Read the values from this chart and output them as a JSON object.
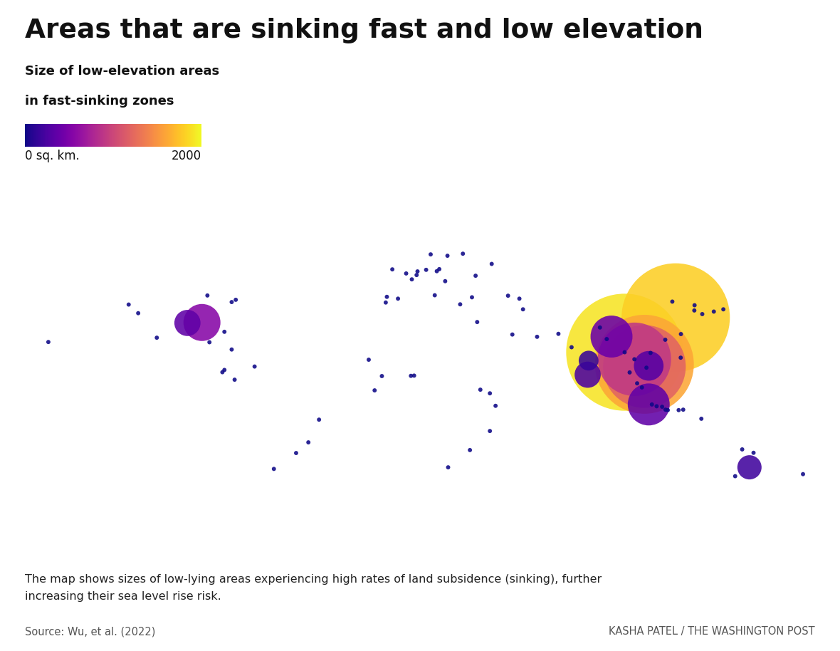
{
  "title": "Areas that are sinking fast and low elevation",
  "legend_title_line1": "Size of low-elevation areas",
  "legend_title_line2": "in fast-sinking zones",
  "legend_min_label": "0 sq. km.",
  "legend_max_label": "2000",
  "caption_line1": "The map shows sizes of low-lying areas experiencing high rates of land subsidence (sinking), further",
  "caption_line2": "increasing their sea level rise risk.",
  "source": "Source: Wu, et al. (2022)",
  "credit": "KASHA PATEL / THE WASHINGTON POST",
  "background_color": "#ffffff",
  "land_color": "#e8e8e8",
  "border_color": "#bbbbbb",
  "ocean_color": "#ffffff",
  "vmin": 0,
  "vmax": 2000,
  "points": [
    {
      "lon": -122.4,
      "lat": 37.8,
      "value": 5,
      "size": 18
    },
    {
      "lon": -118.2,
      "lat": 34.0,
      "value": 5,
      "size": 18
    },
    {
      "lon": -87.7,
      "lat": 41.8,
      "value": 5,
      "size": 18
    },
    {
      "lon": -80.2,
      "lat": 25.8,
      "value": 5,
      "size": 18
    },
    {
      "lon": -75.2,
      "lat": 39.9,
      "value": 5,
      "size": 18
    },
    {
      "lon": -90.1,
      "lat": 29.9,
      "value": 550,
      "size": 1400
    },
    {
      "lon": -96.5,
      "lat": 29.7,
      "value": 350,
      "size": 700
    },
    {
      "lon": -77.0,
      "lat": 38.9,
      "value": 5,
      "size": 18
    },
    {
      "lon": -157.8,
      "lat": 21.3,
      "value": 5,
      "size": 18
    },
    {
      "lon": -110.0,
      "lat": 23.2,
      "value": 5,
      "size": 18
    },
    {
      "lon": -77.0,
      "lat": 18.0,
      "value": 5,
      "size": 18
    },
    {
      "lon": -58.4,
      "lat": -34.6,
      "value": 5,
      "size": 18
    },
    {
      "lon": -43.2,
      "lat": -22.9,
      "value": 5,
      "size": 18
    },
    {
      "lon": -38.5,
      "lat": -12.9,
      "value": 5,
      "size": 18
    },
    {
      "lon": -48.6,
      "lat": -27.6,
      "value": 5,
      "size": 18
    },
    {
      "lon": -81.1,
      "lat": 8.0,
      "value": 5,
      "size": 18
    },
    {
      "lon": -66.9,
      "lat": 10.5,
      "value": 5,
      "size": 18
    },
    {
      "lon": -0.1,
      "lat": 51.5,
      "value": 5,
      "size": 18
    },
    {
      "lon": 4.9,
      "lat": 52.4,
      "value": 5,
      "size": 18
    },
    {
      "lon": 12.5,
      "lat": 41.9,
      "value": 5,
      "size": 18
    },
    {
      "lon": 14.5,
      "lat": 53.4,
      "value": 5,
      "size": 18
    },
    {
      "lon": 2.4,
      "lat": 48.9,
      "value": 5,
      "size": 18
    },
    {
      "lon": 13.4,
      "lat": 52.5,
      "value": 5,
      "size": 18
    },
    {
      "lon": 18.1,
      "lat": 59.3,
      "value": 5,
      "size": 18
    },
    {
      "lon": 24.9,
      "lat": 60.2,
      "value": 5,
      "size": 18
    },
    {
      "lon": 10.7,
      "lat": 59.9,
      "value": 5,
      "size": 18
    },
    {
      "lon": 8.7,
      "lat": 53.1,
      "value": 5,
      "size": 18
    },
    {
      "lon": 4.5,
      "lat": 50.8,
      "value": 5,
      "size": 18
    },
    {
      "lon": 17.1,
      "lat": 48.1,
      "value": 5,
      "size": 18
    },
    {
      "lon": 23.7,
      "lat": 37.9,
      "value": 5,
      "size": 18
    },
    {
      "lon": 28.9,
      "lat": 41.0,
      "value": 5,
      "size": 18
    },
    {
      "lon": 30.5,
      "lat": 50.5,
      "value": 5,
      "size": 18
    },
    {
      "lon": 37.6,
      "lat": 55.7,
      "value": 5,
      "size": 18
    },
    {
      "lon": -9.1,
      "lat": 38.7,
      "value": 5,
      "size": 18
    },
    {
      "lon": -8.6,
      "lat": 41.2,
      "value": 5,
      "size": 18
    },
    {
      "lon": -3.7,
      "lat": 40.4,
      "value": 5,
      "size": 18
    },
    {
      "lon": -6.2,
      "lat": 53.3,
      "value": 5,
      "size": 18
    },
    {
      "lon": 31.2,
      "lat": 30.1,
      "value": 5,
      "size": 18
    },
    {
      "lon": 36.8,
      "lat": -1.3,
      "value": 5,
      "size": 18
    },
    {
      "lon": 32.6,
      "lat": 0.3,
      "value": 5,
      "size": 18
    },
    {
      "lon": 18.4,
      "lat": -33.9,
      "value": 5,
      "size": 18
    },
    {
      "lon": 36.8,
      "lat": -17.9,
      "value": 5,
      "size": 18
    },
    {
      "lon": 2.0,
      "lat": 6.4,
      "value": 5,
      "size": 18
    },
    {
      "lon": 3.4,
      "lat": 6.5,
      "value": 5,
      "size": 18
    },
    {
      "lon": -10.8,
      "lat": 6.3,
      "value": 5,
      "size": 18
    },
    {
      "lon": -16.6,
      "lat": 13.5,
      "value": 5,
      "size": 18
    },
    {
      "lon": -14.0,
      "lat": 0.0,
      "value": 5,
      "size": 18
    },
    {
      "lon": 44.8,
      "lat": 41.7,
      "value": 5,
      "size": 18
    },
    {
      "lon": 49.8,
      "lat": 40.4,
      "value": 5,
      "size": 18
    },
    {
      "lon": 51.4,
      "lat": 35.7,
      "value": 5,
      "size": 18
    },
    {
      "lon": 57.6,
      "lat": 23.6,
      "value": 5,
      "size": 18
    },
    {
      "lon": 46.7,
      "lat": 24.6,
      "value": 5,
      "size": 18
    },
    {
      "lon": 67.0,
      "lat": 24.9,
      "value": 5,
      "size": 18
    },
    {
      "lon": 72.8,
      "lat": 19.0,
      "value": 5,
      "size": 18
    },
    {
      "lon": 85.3,
      "lat": 27.7,
      "value": 5,
      "size": 18
    },
    {
      "lon": 88.3,
      "lat": 22.6,
      "value": 5,
      "size": 18
    },
    {
      "lon": 96.2,
      "lat": 16.8,
      "value": 5,
      "size": 18
    },
    {
      "lon": 100.5,
      "lat": 13.7,
      "value": 5,
      "size": 18
    },
    {
      "lon": 103.8,
      "lat": 1.3,
      "value": 5,
      "size": 18
    },
    {
      "lon": 101.7,
      "lat": 3.1,
      "value": 5,
      "size": 18
    },
    {
      "lon": 107.6,
      "lat": 16.5,
      "value": 5,
      "size": 18
    },
    {
      "lon": 117.2,
      "lat": 39.1,
      "value": 5,
      "size": 18
    },
    {
      "lon": 114.1,
      "lat": 22.3,
      "value": 5,
      "size": 18
    },
    {
      "lon": 120.9,
      "lat": 14.4,
      "value": 5,
      "size": 18
    },
    {
      "lon": 108.2,
      "lat": -6.2,
      "value": 5,
      "size": 18
    },
    {
      "lon": 112.7,
      "lat": -7.2,
      "value": 5,
      "size": 18
    },
    {
      "lon": 110.3,
      "lat": -7.0,
      "value": 5,
      "size": 18
    },
    {
      "lon": 105.8,
      "lat": 10.0,
      "value": 5,
      "size": 18
    },
    {
      "lon": 98.4,
      "lat": 7.9,
      "value": 5,
      "size": 18
    },
    {
      "lon": 127.0,
      "lat": 37.5,
      "value": 5,
      "size": 18
    },
    {
      "lon": 126.9,
      "lat": 35.2,
      "value": 5,
      "size": 18
    },
    {
      "lon": 139.7,
      "lat": 35.7,
      "value": 5,
      "size": 18
    },
    {
      "lon": 130.4,
      "lat": 33.6,
      "value": 5,
      "size": 18
    },
    {
      "lon": 135.5,
      "lat": 34.7,
      "value": 5,
      "size": 18
    },
    {
      "lon": 121.0,
      "lat": 24.8,
      "value": 5,
      "size": 18
    },
    {
      "lon": 114.2,
      "lat": -8.5,
      "value": 5,
      "size": 18
    },
    {
      "lon": 115.2,
      "lat": -8.7,
      "value": 5,
      "size": 18
    },
    {
      "lon": 130.0,
      "lat": -12.5,
      "value": 5,
      "size": 18
    },
    {
      "lon": 148.0,
      "lat": -26.0,
      "value": 5,
      "size": 18
    },
    {
      "lon": 153.0,
      "lat": -27.5,
      "value": 5,
      "size": 18
    },
    {
      "lon": 144.9,
      "lat": -37.8,
      "value": 5,
      "size": 18
    },
    {
      "lon": 174.8,
      "lat": -36.9,
      "value": 5,
      "size": 18
    },
    {
      "lon": 120.0,
      "lat": -8.7,
      "value": 5,
      "size": 18
    },
    {
      "lon": 122.0,
      "lat": -8.5,
      "value": 5,
      "size": 18
    },
    {
      "lon": -86.8,
      "lat": 21.2,
      "value": 5,
      "size": 18
    },
    {
      "lon": -80.2,
      "lat": 9.0,
      "value": 5,
      "size": 18
    },
    {
      "lon": -75.7,
      "lat": 4.7,
      "value": 5,
      "size": 18
    },
    {
      "lon": 39.3,
      "lat": -6.8,
      "value": 5,
      "size": 18
    },
    {
      "lon": 28.0,
      "lat": -26.3,
      "value": 5,
      "size": 18
    },
    {
      "lon": 118.7,
      "lat": 32.1,
      "value": 1800,
      "size": 12000
    },
    {
      "lon": 96.2,
      "lat": 16.8,
      "value": 1900,
      "size": 14000
    },
    {
      "lon": 104.9,
      "lat": 11.5,
      "value": 1600,
      "size": 10000
    },
    {
      "lon": 104.9,
      "lat": 10.5,
      "value": 1200,
      "size": 7000
    },
    {
      "lon": 100.5,
      "lat": 13.7,
      "value": 900,
      "size": 5500
    },
    {
      "lon": 106.8,
      "lat": -6.2,
      "value": 350,
      "size": 1800
    },
    {
      "lon": 106.8,
      "lat": 10.8,
      "value": 300,
      "size": 900
    },
    {
      "lon": 90.4,
      "lat": 23.7,
      "value": 400,
      "size": 1800
    },
    {
      "lon": 80.3,
      "lat": 13.1,
      "value": 150,
      "size": 400
    },
    {
      "lon": 79.9,
      "lat": 6.9,
      "value": 250,
      "size": 700
    },
    {
      "lon": 151.2,
      "lat": -33.9,
      "value": 200,
      "size": 600
    }
  ]
}
